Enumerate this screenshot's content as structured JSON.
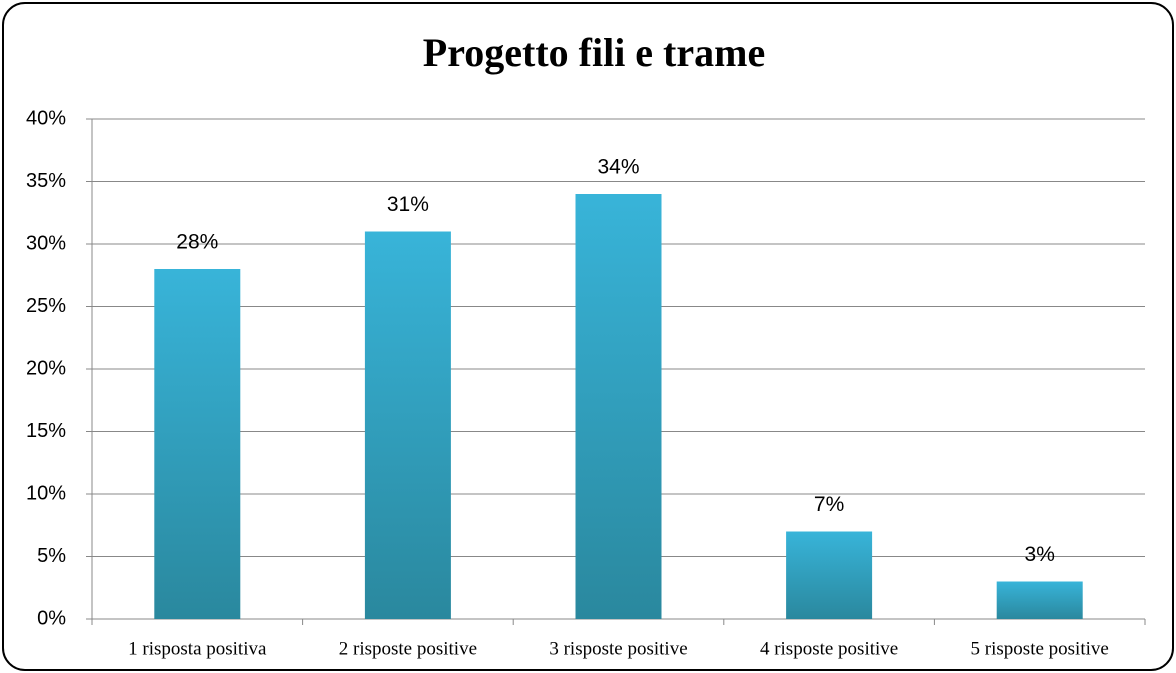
{
  "chart_data": {
    "type": "bar",
    "title": "Progetto fili e trame",
    "categories": [
      "1 risposta positiva",
      "2 risposte positive",
      "3 risposte positive",
      "4 risposte positive",
      "5 risposte positive"
    ],
    "values": [
      28,
      31,
      34,
      7,
      3
    ],
    "value_labels": [
      "28%",
      "31%",
      "34%",
      "7%",
      "3%"
    ],
    "color": "#38b4d9",
    "ylim": [
      0,
      40
    ],
    "yticks": [
      {
        "value": 0,
        "label": "0%"
      },
      {
        "value": 5,
        "label": "5%"
      },
      {
        "value": 10,
        "label": "10%"
      },
      {
        "value": 15,
        "label": "15%"
      },
      {
        "value": 20,
        "label": "20%"
      },
      {
        "value": 25,
        "label": "25%"
      },
      {
        "value": 30,
        "label": "30%"
      },
      {
        "value": 35,
        "label": "35%"
      },
      {
        "value": 40,
        "label": "40%"
      }
    ],
    "grid": true
  }
}
